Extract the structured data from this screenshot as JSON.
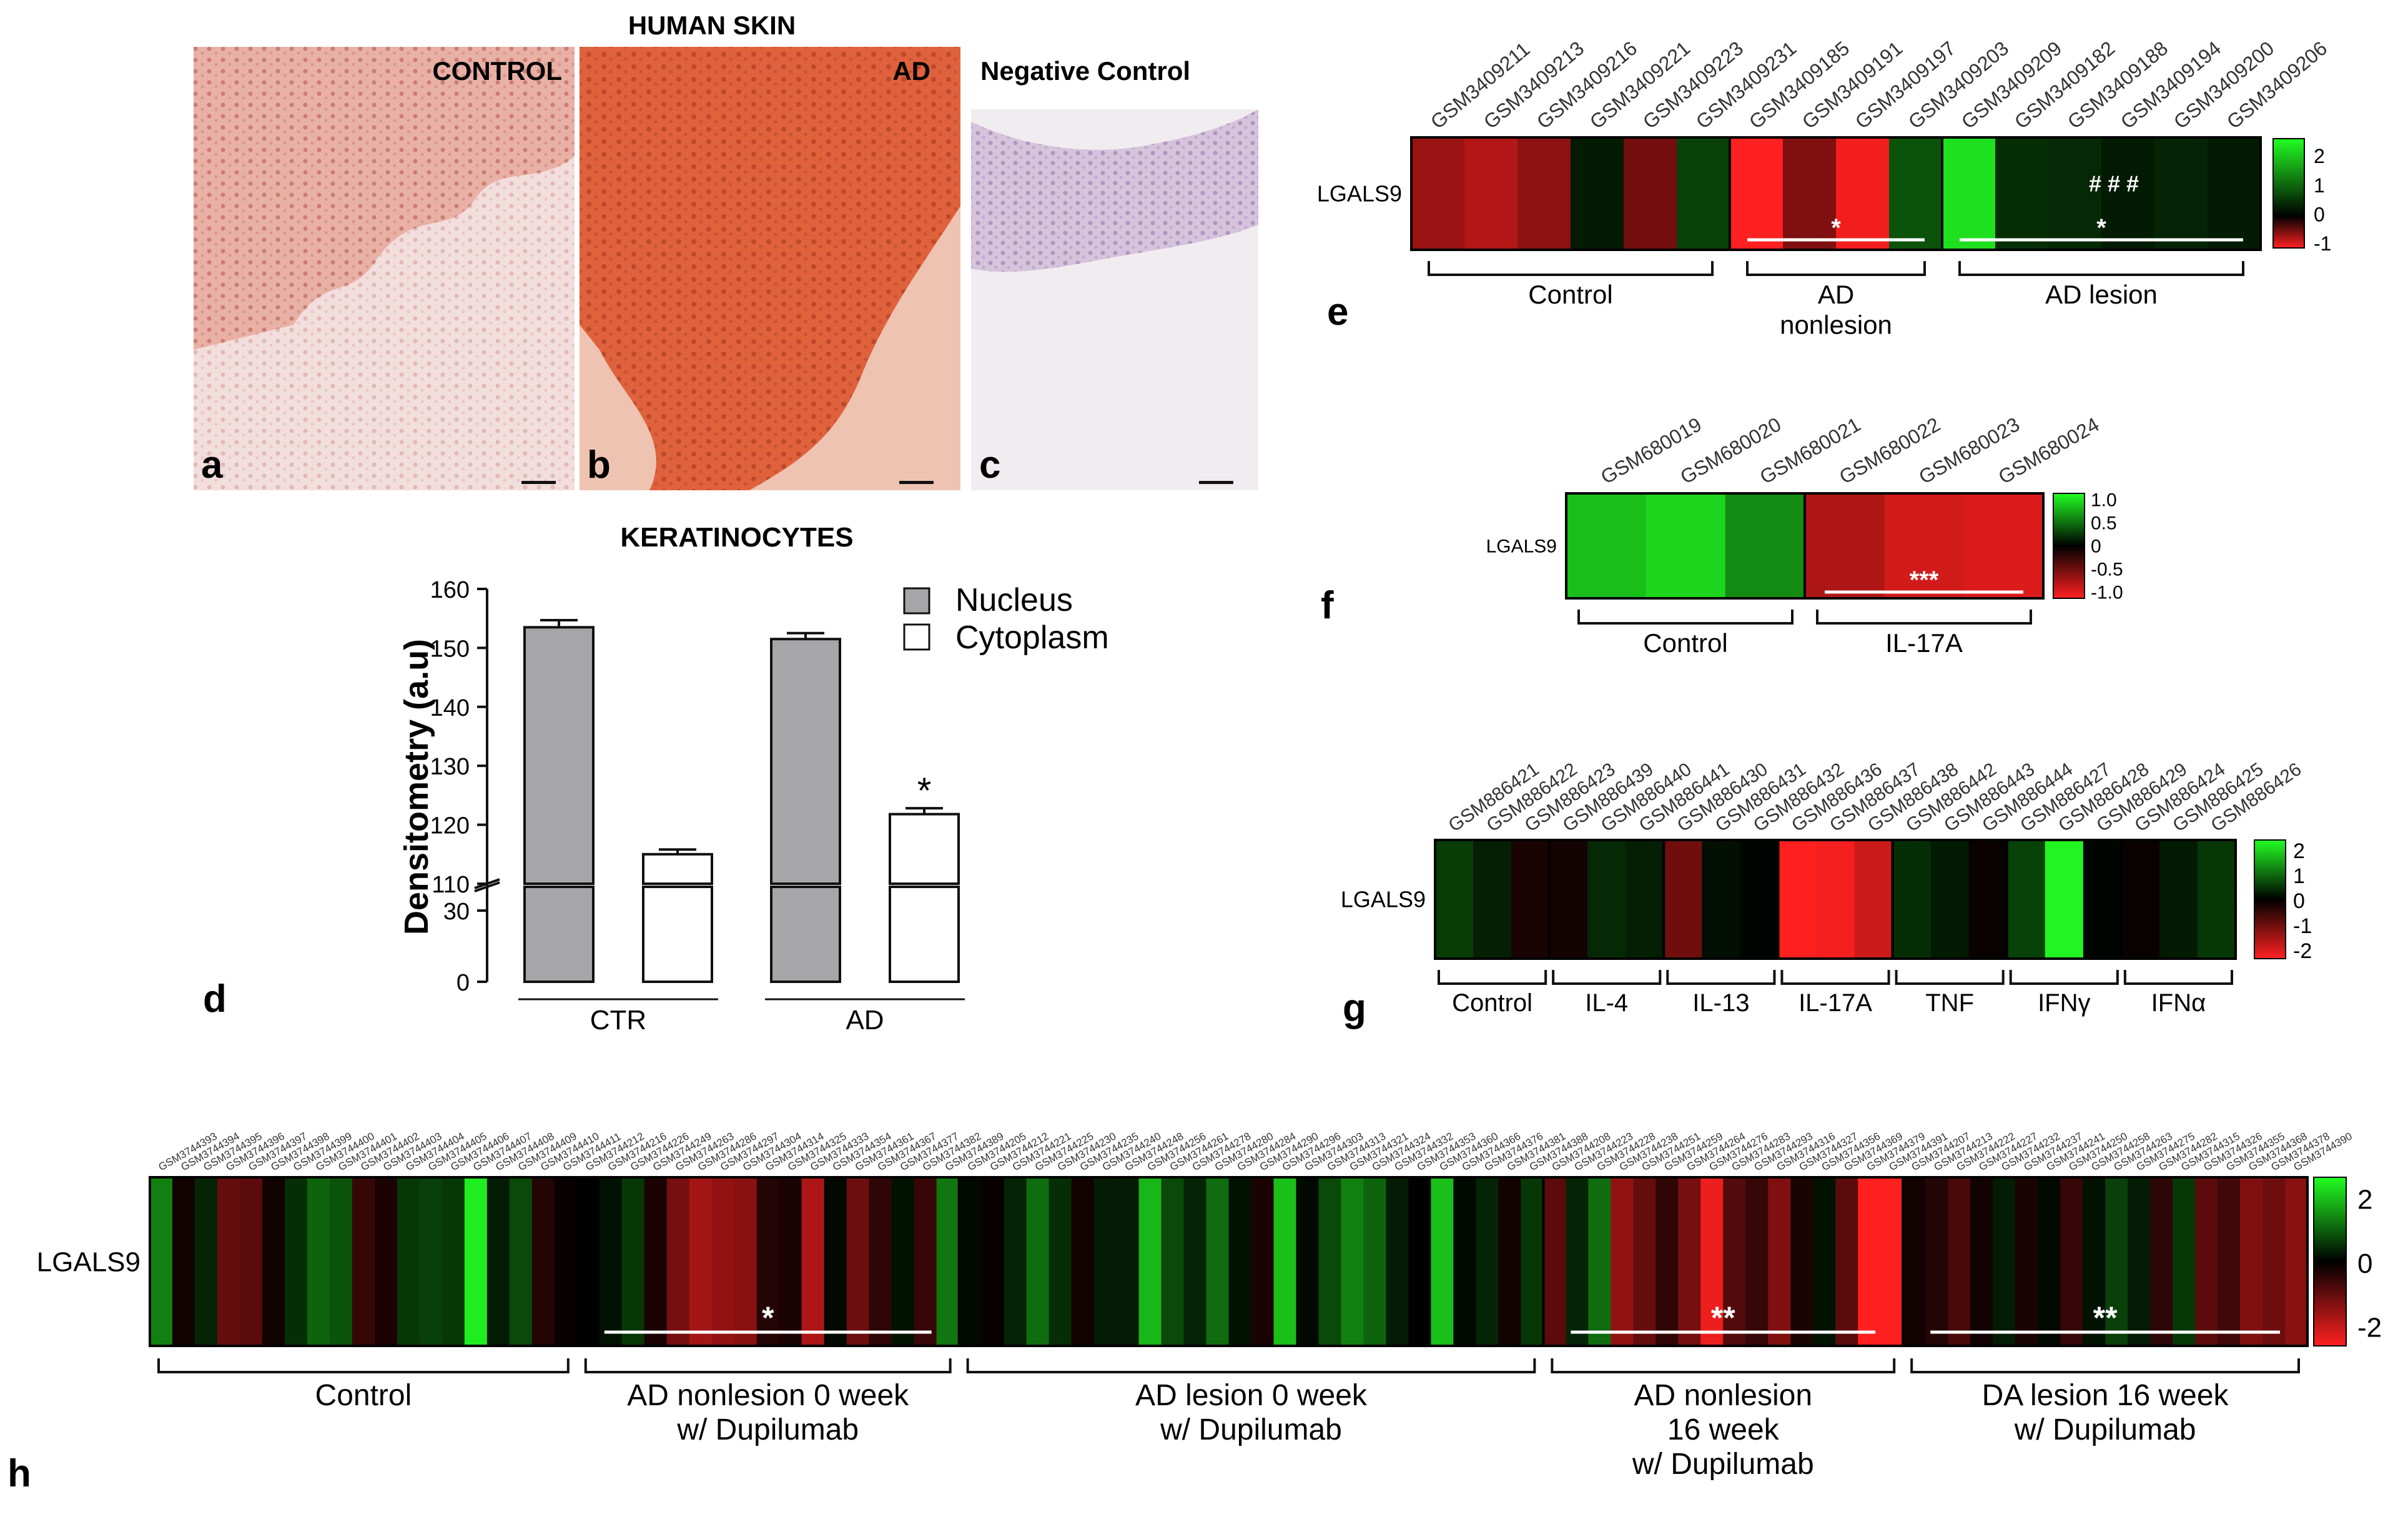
{
  "skin": {
    "title": "HUMAN SKIN",
    "panels": [
      {
        "letter": "a",
        "label": "CONTROL"
      },
      {
        "letter": "b",
        "label": "AD"
      },
      {
        "letter": "c",
        "label": "Negative Control"
      }
    ]
  },
  "panel_d": {
    "letter": "d",
    "title": "KERATINOCYTES",
    "ylabel": "Densitometry (a.u)",
    "legend": [
      "Nucleus",
      "Cytoplasm"
    ],
    "colors": {
      "nucleus": "#a6a6a8",
      "cytoplasm": "#ffffff"
    }
  },
  "chart_data": [
    {
      "panel": "d",
      "type": "bar",
      "title": "KERATINOCYTES",
      "ylabel": "Densitometry (a.u)",
      "categories": [
        "CTR",
        "AD"
      ],
      "series": [
        {
          "name": "Nucleus",
          "values": [
            153.5,
            151.5
          ],
          "errors": [
            1.2,
            1.0
          ]
        },
        {
          "name": "Cytoplasm",
          "values": [
            115.0,
            121.8
          ],
          "errors": [
            0.8,
            1.0
          ]
        }
      ],
      "axis_break": {
        "lower": [
          0,
          40
        ],
        "upper": [
          110,
          160
        ]
      },
      "yticks_upper": [
        110,
        120,
        130,
        140,
        150,
        160
      ],
      "yticks_lower": [
        0,
        30
      ],
      "annotations": [
        {
          "category": "AD",
          "series": "Cytoplasm",
          "text": "*"
        }
      ]
    },
    {
      "panel": "e",
      "type": "heatmap",
      "row": "LGALS9",
      "columns": [
        "GSM3409211",
        "GSM3409213",
        "GSM3409216",
        "GSM3409221",
        "GSM3409223",
        "GSM3409231",
        "GSM3409185",
        "GSM3409191",
        "GSM3409197",
        "GSM3409203",
        "GSM3409209",
        "GSM3409182",
        "GSM3409188",
        "GSM3409194",
        "GSM3409200",
        "GSM3409206"
      ],
      "values": [
        -0.6,
        -0.7,
        -0.55,
        0.25,
        -0.45,
        0.65,
        -1.0,
        -0.5,
        -0.95,
        0.8,
        2.2,
        0.45,
        0.4,
        0.25,
        0.35,
        0.25
      ],
      "groups": [
        {
          "label": "Control",
          "start": 0,
          "end": 5
        },
        {
          "label": "AD\nnonlesion",
          "start": 6,
          "end": 9,
          "sig": "*"
        },
        {
          "label": "AD lesion",
          "start": 10,
          "end": 15,
          "sig": "*",
          "sig2": "# # #"
        }
      ],
      "scale": {
        "ticks": [
          2,
          1,
          0,
          -1
        ],
        "min": -1,
        "max": 2.5
      }
    },
    {
      "panel": "f",
      "type": "heatmap",
      "row": "LGALS9",
      "columns": [
        "GSM680019",
        "GSM680020",
        "GSM680021",
        "GSM680022",
        "GSM680023",
        "GSM680024"
      ],
      "values": [
        0.82,
        0.92,
        0.6,
        -0.75,
        -0.9,
        -0.95
      ],
      "groups": [
        {
          "label": "Control",
          "start": 0,
          "end": 2
        },
        {
          "label": "IL-17A",
          "start": 3,
          "end": 5,
          "sig": "***"
        }
      ],
      "scale": {
        "ticks": [
          1.0,
          0.5,
          0,
          -0.5,
          -1.0
        ],
        "min": -1.1,
        "max": 1.1
      }
    },
    {
      "panel": "g",
      "type": "heatmap",
      "row": "LGALS9",
      "columns": [
        "GSM886421",
        "GSM886422",
        "GSM886423",
        "GSM886439",
        "GSM886440",
        "GSM886441",
        "GSM886430",
        "GSM886431",
        "GSM886432",
        "GSM886436",
        "GSM886437",
        "GSM886438",
        "GSM886442",
        "GSM886443",
        "GSM886444",
        "GSM886427",
        "GSM886428",
        "GSM886429",
        "GSM886424",
        "GSM886425",
        "GSM886426"
      ],
      "values": [
        0.6,
        0.3,
        -0.25,
        -0.2,
        0.4,
        0.3,
        -1.1,
        0.15,
        0.05,
        -2.5,
        -2.4,
        -2.0,
        0.45,
        0.25,
        -0.1,
        0.65,
        2.4,
        0.05,
        -0.1,
        0.25,
        0.55
      ],
      "groups": [
        {
          "label": "Control",
          "start": 0,
          "end": 2
        },
        {
          "label": "IL-4",
          "start": 3,
          "end": 5
        },
        {
          "label": "IL-13",
          "start": 6,
          "end": 8
        },
        {
          "label": "IL-17A",
          "start": 9,
          "end": 11
        },
        {
          "label": "TNF",
          "start": 12,
          "end": 14
        },
        {
          "label": "IFNγ",
          "start": 15,
          "end": 17
        },
        {
          "label": "IFNα",
          "start": 18,
          "end": 20
        }
      ],
      "scale": {
        "ticks": [
          2,
          1,
          0,
          -1,
          -2
        ],
        "min": -2.5,
        "max": 2.5
      }
    },
    {
      "panel": "h",
      "type": "heatmap",
      "row": "LGALS9",
      "columns": [
        "GSM3744393",
        "GSM3744394",
        "GSM3744395",
        "GSM3744396",
        "GSM3744397",
        "GSM3744398",
        "GSM3744399",
        "GSM3744400",
        "GSM3744401",
        "GSM3744402",
        "GSM3744403",
        "GSM3744404",
        "GSM3744405",
        "GSM3744406",
        "GSM3744407",
        "GSM3744408",
        "GSM3744409",
        "GSM3744410",
        "GSM3744411",
        "GSM3744212",
        "GSM3744216",
        "GSM3744226",
        "GSM3744249",
        "GSM3744263",
        "GSM3744286",
        "GSM3744297",
        "GSM3744304",
        "GSM3744314",
        "GSM3744325",
        "GSM3744333",
        "GSM3744354",
        "GSM3744361",
        "GSM3744367",
        "GSM3744377",
        "GSM3744382",
        "GSM3744389",
        "GSM3744205",
        "GSM3744212",
        "GSM3744221",
        "GSM3744225",
        "GSM3744230",
        "GSM3744235",
        "GSM3744240",
        "GSM3744248",
        "GSM3744256",
        "GSM3744261",
        "GSM3744278",
        "GSM3744280",
        "GSM3744284",
        "GSM3744290",
        "GSM3744296",
        "GSM3744303",
        "GSM3744313",
        "GSM3744321",
        "GSM3744324",
        "GSM3744332",
        "GSM3744353",
        "GSM3744360",
        "GSM3744366",
        "GSM3744376",
        "GSM3744381",
        "GSM3744388",
        "GSM3744208",
        "GSM3744223",
        "GSM3744228",
        "GSM3744238",
        "GSM3744251",
        "GSM3744259",
        "GSM3744264",
        "GSM3744276",
        "GSM3744283",
        "GSM3744293",
        "GSM3744316",
        "GSM3744327",
        "GSM3744356",
        "GSM3744369",
        "GSM3744379",
        "GSM3744391",
        "GSM3744207",
        "GSM3744213",
        "GSM3744222",
        "GSM3744227",
        "GSM3744232",
        "GSM3744237",
        "GSM3744241",
        "GSM3744250",
        "GSM3744258",
        "GSM3744263",
        "GSM3744275",
        "GSM3744282",
        "GSM3744315",
        "GSM3744326",
        "GSM3744355",
        "GSM3744368",
        "GSM3744378",
        "GSM3744390"
      ],
      "values": [
        1.4,
        -0.2,
        0.4,
        -1.1,
        -1.0,
        -0.2,
        0.5,
        1.1,
        0.9,
        -0.6,
        -0.3,
        0.6,
        0.7,
        0.6,
        2.6,
        0.3,
        0.8,
        -0.4,
        -0.1,
        0.0,
        0.2,
        0.6,
        -0.3,
        -1.3,
        -1.8,
        -1.6,
        -1.5,
        -0.4,
        -0.3,
        -1.9,
        0.1,
        -1.2,
        -0.5,
        0.2,
        -0.6,
        1.3,
        0.1,
        -0.1,
        0.4,
        1.2,
        0.5,
        -0.2,
        0.3,
        0.3,
        2.0,
        0.8,
        0.4,
        1.2,
        0.2,
        -0.3,
        2.1,
        0.1,
        0.8,
        1.4,
        1.1,
        0.3,
        0.0,
        2.1,
        0.1,
        0.4,
        -0.2,
        0.6,
        -1.0,
        0.4,
        1.2,
        -1.6,
        -1.1,
        -0.5,
        -1.3,
        -2.6,
        -0.9,
        -0.6,
        -1.4,
        -0.3,
        0.2,
        -1.0,
        -2.8,
        -2.8,
        -0.2,
        -0.4,
        -0.8,
        -0.2,
        0.3,
        -0.3,
        0.1,
        -0.6,
        0.2,
        0.7,
        0.3,
        -0.5,
        0.6,
        -1.0,
        -0.7,
        -1.4,
        -1.2,
        -1.5
      ],
      "groups": [
        {
          "label": "Control",
          "start": 0,
          "end": 18
        },
        {
          "label": "AD nonlesion 0 week\nw/ Dupilumab",
          "start": 19,
          "end": 35,
          "sig": "*"
        },
        {
          "label": "AD lesion 0 week\nw/ Dupilumab",
          "start": 36,
          "end": 61
        },
        {
          "label": "AD nonlesion\n16 week\nw/ Dupilumab",
          "start": 62,
          "end": 77,
          "sig": "**"
        },
        {
          "label": "DA lesion 16 week\nw/ Dupilumab",
          "start": 78,
          "end": 95,
          "sig": "**"
        }
      ],
      "scale": {
        "ticks": [
          2,
          0,
          -2
        ],
        "min": -2.8,
        "max": 2.8
      }
    }
  ],
  "panel_letters": {
    "e": "e",
    "f": "f",
    "g": "g",
    "h": "h"
  },
  "colors": {
    "red": "#ff2020",
    "green": "#22ff22",
    "black": "#000000"
  }
}
